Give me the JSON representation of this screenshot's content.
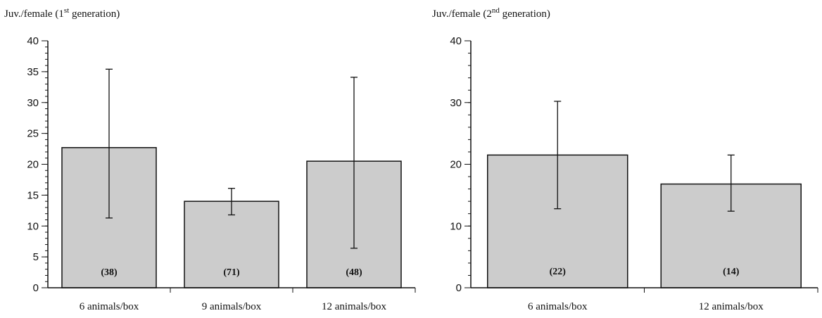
{
  "chart_data": [
    {
      "type": "bar",
      "ylabel": {
        "prefix": "Juv./female (1",
        "sup": "st",
        "suffix": " generation)"
      },
      "categories": [
        "6 animals/box",
        "9 animals/box",
        "12 animals/box"
      ],
      "values": [
        22.7,
        14.0,
        20.5
      ],
      "error_low": [
        11.3,
        11.8,
        6.4
      ],
      "error_high": [
        35.4,
        16.1,
        34.1
      ],
      "n_labels": [
        "(38)",
        "(71)",
        "(48)"
      ],
      "ylim": [
        0,
        40
      ],
      "yticks": [
        0,
        5,
        10,
        15,
        20,
        25,
        30,
        35,
        40
      ],
      "yminor": 1,
      "bar_color": "#cccccc"
    },
    {
      "type": "bar",
      "ylabel": {
        "prefix": "Juv./female (2",
        "sup": "nd",
        "suffix": " generation)"
      },
      "categories": [
        "6 animals/box",
        "12 animals/box"
      ],
      "values": [
        21.5,
        16.8
      ],
      "error_low": [
        12.8,
        12.4
      ],
      "error_high": [
        30.2,
        21.5
      ],
      "n_labels": [
        "(22)",
        "(14)"
      ],
      "ylim": [
        0,
        40
      ],
      "yticks": [
        0,
        10,
        20,
        30,
        40
      ],
      "yminor": 2,
      "bar_color": "#cccccc"
    }
  ]
}
